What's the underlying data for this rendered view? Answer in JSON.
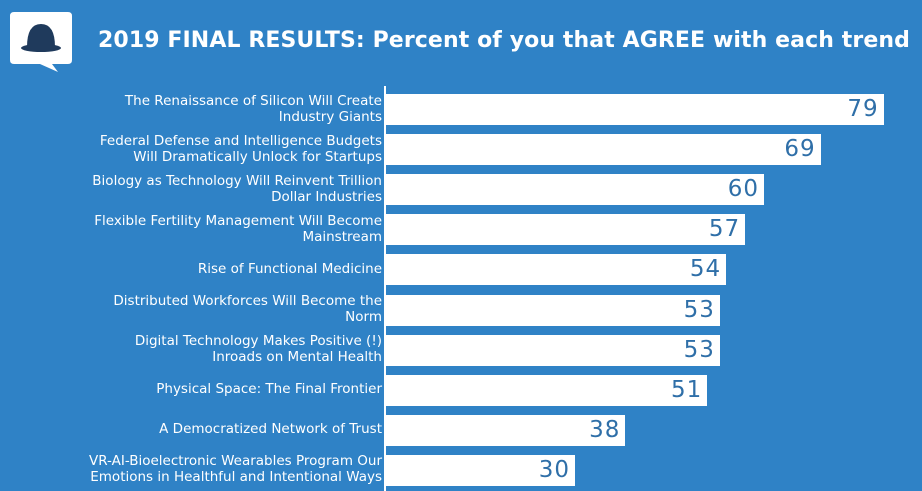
{
  "slide": {
    "title": "2019 FINAL RESULTS: Percent of you that AGREE with each trend",
    "logo_icon": "speech-bubble-bowler-hat-icon",
    "colors": {
      "background": "#2f82c6",
      "bar": "#ffffff",
      "value_text": "#2f6fa8"
    }
  },
  "chart_data": {
    "type": "bar",
    "orientation": "horizontal",
    "title": "2019 FINAL RESULTS: Percent of you that AGREE with each trend",
    "categories": [
      [
        "The Renaissance of Silicon Will Create",
        "Industry Giants"
      ],
      [
        "Federal Defense and Intelligence Budgets",
        "Will Dramatically Unlock for Startups"
      ],
      [
        "Biology as Technology Will Reinvent Trillion",
        "Dollar Industries"
      ],
      [
        "Flexible Fertility Management Will Become",
        "Mainstream"
      ],
      [
        "Rise of Functional Medicine"
      ],
      [
        "Distributed Workforces Will Become the",
        "Norm"
      ],
      [
        "Digital Technology Makes Positive (!)",
        "Inroads on Mental Health"
      ],
      [
        "Physical Space: The Final Frontier"
      ],
      [
        "A Democratized Network of Trust"
      ],
      [
        "VR-AI-Bioelectronic Wearables Program Our",
        "Emotions in Healthful and Intentional Ways"
      ]
    ],
    "values": [
      79,
      69,
      60,
      57,
      54,
      53,
      53,
      51,
      38,
      30
    ],
    "xlim": [
      0,
      100
    ],
    "grid": false,
    "legend": "none",
    "data_labels": "inside-end"
  }
}
